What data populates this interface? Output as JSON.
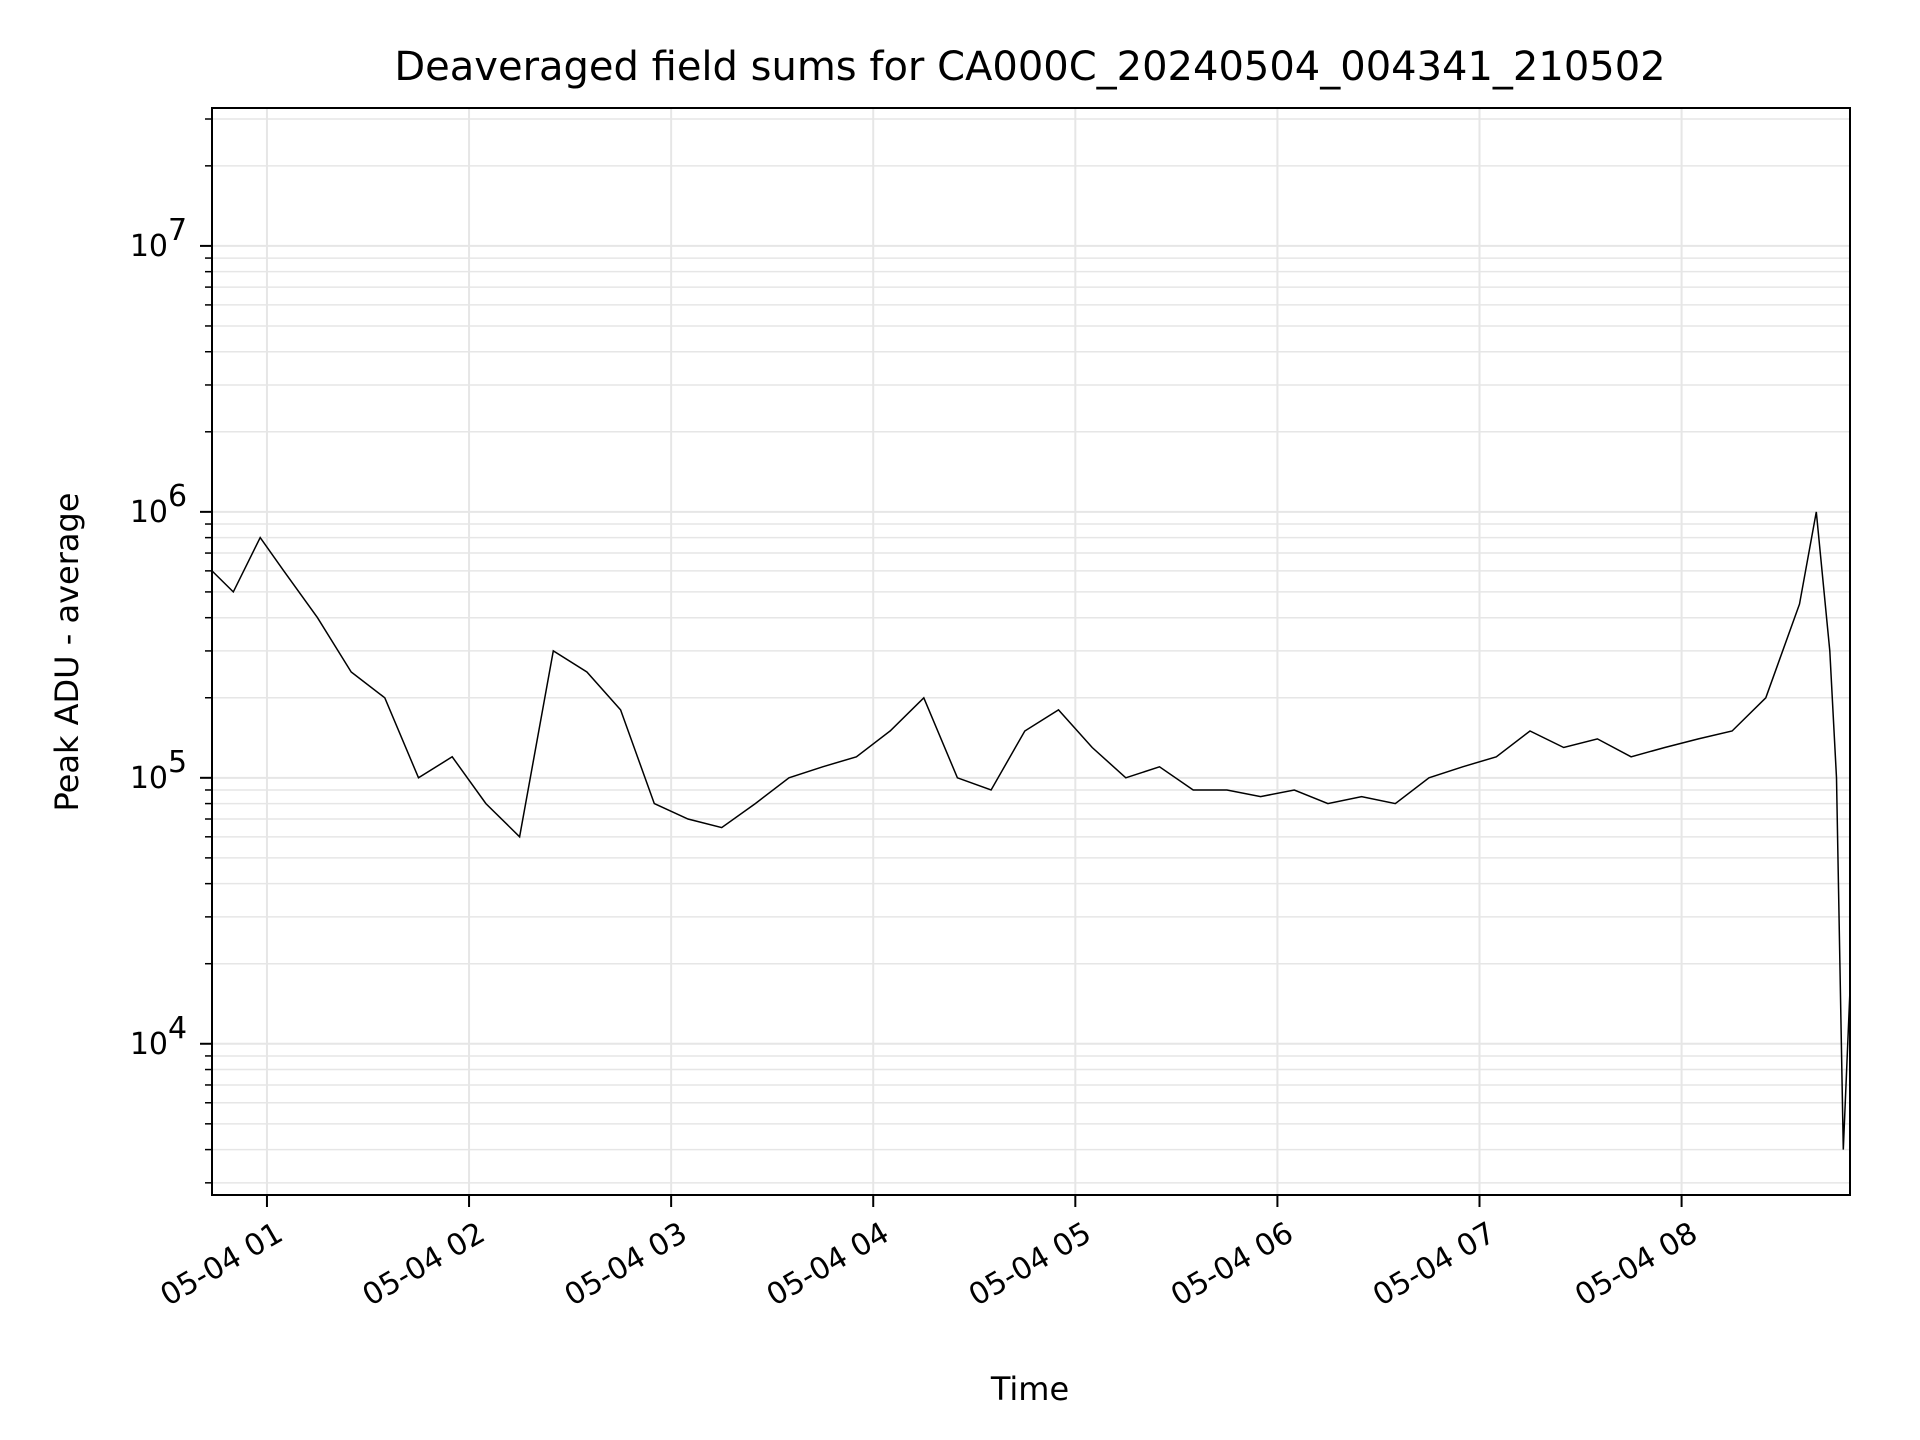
{
  "chart_data": {
    "type": "line",
    "title": "Deaveraged field sums for CA000C_20240504_004341_210502",
    "xlabel": "Time",
    "ylabel": "Peak ADU - average",
    "y_scale": "log",
    "ylim": [
      2700,
      33000000
    ],
    "xlim": [
      "2024-05-04 00:43:41",
      "2024-05-04 08:50:00"
    ],
    "grid": true,
    "line_color": "#000000",
    "grid_color": "#e6e6e6",
    "x_ticks": [
      {
        "value": "2024-05-04 01:00",
        "label": "05-04 01"
      },
      {
        "value": "2024-05-04 02:00",
        "label": "05-04 02"
      },
      {
        "value": "2024-05-04 03:00",
        "label": "05-04 03"
      },
      {
        "value": "2024-05-04 04:00",
        "label": "05-04 04"
      },
      {
        "value": "2024-05-04 05:00",
        "label": "05-04 05"
      },
      {
        "value": "2024-05-04 06:00",
        "label": "05-04 06"
      },
      {
        "value": "2024-05-04 07:00",
        "label": "05-04 07"
      },
      {
        "value": "2024-05-04 08:00",
        "label": "05-04 08"
      }
    ],
    "y_ticks": [
      {
        "value": 10000,
        "base": "10",
        "exp": "4"
      },
      {
        "value": 100000,
        "base": "10",
        "exp": "5"
      },
      {
        "value": 1000000,
        "base": "10",
        "exp": "6"
      },
      {
        "value": 10000000,
        "base": "10",
        "exp": "7"
      }
    ],
    "series": [
      {
        "x": [
          "2024-05-04 00:43:41",
          "2024-05-04 00:50",
          "2024-05-04 00:58",
          "2024-05-04 01:05",
          "2024-05-04 01:15",
          "2024-05-04 01:25",
          "2024-05-04 01:35",
          "2024-05-04 01:45",
          "2024-05-04 01:55",
          "2024-05-04 02:05",
          "2024-05-04 02:15",
          "2024-05-04 02:25",
          "2024-05-04 02:35",
          "2024-05-04 02:45",
          "2024-05-04 02:55",
          "2024-05-04 03:05",
          "2024-05-04 03:15",
          "2024-05-04 03:25",
          "2024-05-04 03:35",
          "2024-05-04 03:45",
          "2024-05-04 03:55",
          "2024-05-04 04:05",
          "2024-05-04 04:15",
          "2024-05-04 04:25",
          "2024-05-04 04:35",
          "2024-05-04 04:45",
          "2024-05-04 04:55",
          "2024-05-04 05:05",
          "2024-05-04 05:15",
          "2024-05-04 05:25",
          "2024-05-04 05:35",
          "2024-05-04 05:45",
          "2024-05-04 05:55",
          "2024-05-04 06:05",
          "2024-05-04 06:15",
          "2024-05-04 06:25",
          "2024-05-04 06:35",
          "2024-05-04 06:45",
          "2024-05-04 06:55",
          "2024-05-04 07:05",
          "2024-05-04 07:15",
          "2024-05-04 07:25",
          "2024-05-04 07:35",
          "2024-05-04 07:45",
          "2024-05-04 07:55",
          "2024-05-04 08:05",
          "2024-05-04 08:15",
          "2024-05-04 08:25",
          "2024-05-04 08:35",
          "2024-05-04 08:40",
          "2024-05-04 08:44",
          "2024-05-04 08:46",
          "2024-05-04 08:48",
          "2024-05-04 08:50"
        ],
        "y": [
          600000,
          500000,
          800000,
          600000,
          400000,
          250000,
          200000,
          100000,
          120000,
          80000,
          60000,
          300000,
          250000,
          180000,
          80000,
          70000,
          65000,
          80000,
          100000,
          110000,
          120000,
          150000,
          200000,
          100000,
          90000,
          150000,
          180000,
          130000,
          100000,
          110000,
          90000,
          90000,
          85000,
          90000,
          80000,
          85000,
          80000,
          100000,
          110000,
          120000,
          150000,
          130000,
          140000,
          120000,
          130000,
          140000,
          150000,
          200000,
          450000,
          1000000,
          300000,
          100000,
          4000,
          16000
        ]
      }
    ]
  }
}
